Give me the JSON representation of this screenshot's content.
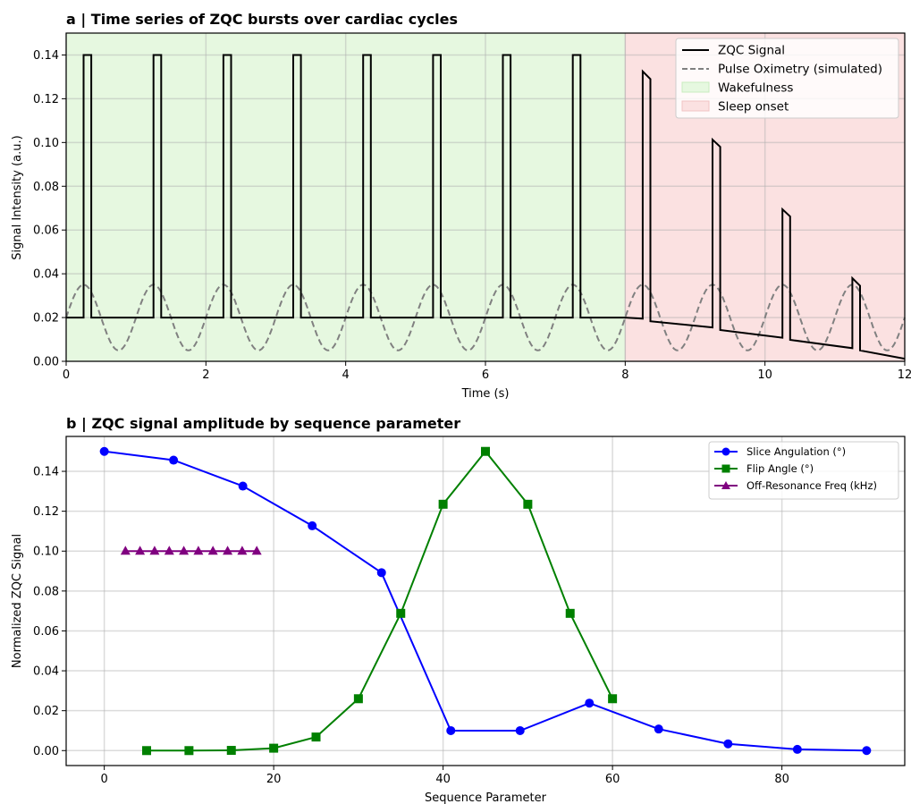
{
  "chart_data": [
    {
      "type": "line",
      "title": "a | Time series of ZQC bursts over cardiac cycles",
      "xlabel": "Time (s)",
      "ylabel": "Signal Intensity (a.u.)",
      "xlim": [
        0,
        12
      ],
      "ylim": [
        0,
        0.15
      ],
      "xticks": [
        0,
        2,
        4,
        6,
        8,
        10,
        12
      ],
      "xtick_labels": [
        "0",
        "2",
        "4",
        "6",
        "8",
        "10",
        "12"
      ],
      "yticks": [
        0,
        0.02,
        0.04,
        0.06,
        0.08,
        0.1,
        0.12,
        0.14
      ],
      "ytick_labels": [
        "0.00",
        "0.02",
        "0.04",
        "0.06",
        "0.08",
        "0.10",
        "0.12",
        "0.14"
      ],
      "grid": true,
      "legend_position": "top-right",
      "shaded_regions": [
        {
          "name": "Wakefulness",
          "x": [
            0,
            8
          ],
          "color": "#e6f8e0"
        },
        {
          "name": "Sleep onset",
          "x": [
            8,
            12
          ],
          "color": "#fbe1e1"
        }
      ],
      "series": [
        {
          "name": "ZQC Signal",
          "color": "#000000",
          "style": "solid",
          "x": [
            0,
            0.25,
            0.25,
            0.36,
            0.36,
            1.25,
            1.25,
            1.36,
            1.36,
            2.25,
            2.25,
            2.36,
            2.36,
            3.25,
            3.25,
            3.36,
            3.36,
            4.25,
            4.25,
            4.36,
            4.36,
            5.25,
            5.25,
            5.36,
            5.36,
            6.25,
            6.25,
            6.36,
            6.36,
            7.25,
            7.25,
            7.36,
            7.36,
            8.0,
            8.25,
            8.25,
            8.36,
            8.36,
            9.25,
            9.25,
            9.36,
            9.36,
            10.25,
            10.25,
            10.36,
            10.36,
            11.25,
            11.25,
            11.36,
            11.36,
            12.0
          ],
          "y": [
            0.02,
            0.02,
            0.14,
            0.14,
            0.02,
            0.02,
            0.14,
            0.14,
            0.02,
            0.02,
            0.14,
            0.14,
            0.02,
            0.02,
            0.14,
            0.14,
            0.02,
            0.02,
            0.14,
            0.14,
            0.02,
            0.02,
            0.14,
            0.14,
            0.02,
            0.02,
            0.14,
            0.14,
            0.02,
            0.02,
            0.14,
            0.14,
            0.02,
            0.02,
            0.0195,
            0.1325,
            0.129,
            0.0183,
            0.0155,
            0.1013,
            0.098,
            0.0143,
            0.0108,
            0.0695,
            0.0662,
            0.0098,
            0.006,
            0.038,
            0.0345,
            0.005,
            0.0012
          ]
        },
        {
          "name": "Pulse Oximetry (simulated)",
          "color": "#808080",
          "style": "dashed",
          "period": 1.0,
          "offset": 0.02,
          "amplitude": 0.015,
          "phase_peak": 0.25
        }
      ]
    },
    {
      "type": "line",
      "title": "b | ZQC signal amplitude by sequence parameter",
      "xlabel": "Sequence Parameter",
      "ylabel": "Normalized ZQC Signal",
      "xlim": [
        -4.5,
        94.5
      ],
      "ylim": [
        -0.0075,
        0.1575
      ],
      "xticks": [
        0,
        20,
        40,
        60,
        80
      ],
      "xtick_labels": [
        "0",
        "20",
        "40",
        "60",
        "80"
      ],
      "yticks": [
        0,
        0.02,
        0.04,
        0.06,
        0.08,
        0.1,
        0.12,
        0.14
      ],
      "ytick_labels": [
        "0.00",
        "0.02",
        "0.04",
        "0.06",
        "0.08",
        "0.10",
        "0.12",
        "0.14"
      ],
      "grid": true,
      "legend_position": "top-right",
      "series": [
        {
          "name": "Slice Angulation (°)",
          "color": "#0000ff",
          "marker": "circle",
          "x": [
            0,
            8.18,
            16.36,
            24.55,
            32.73,
            40.91,
            49.09,
            57.27,
            65.45,
            73.64,
            81.82,
            90
          ],
          "y": [
            0.15,
            0.1456,
            0.1326,
            0.1127,
            0.0892,
            0.01,
            0.01,
            0.0238,
            0.0108,
            0.0034,
            0.0006,
            0.0
          ]
        },
        {
          "name": "Flip Angle (°)",
          "color": "#008000",
          "marker": "square",
          "x": [
            5,
            10,
            15,
            20,
            25,
            30,
            35,
            40,
            45,
            50,
            55,
            60
          ],
          "y": [
            0.0,
            0.0,
            0.0001,
            0.0012,
            0.0068,
            0.026,
            0.0688,
            0.1235,
            0.15,
            0.1235,
            0.0688,
            0.026
          ]
        },
        {
          "name": "Off-Resonance Freq (kHz)",
          "color": "#800080",
          "marker": "triangle",
          "x": [
            2.5,
            4.22,
            5.94,
            7.67,
            9.39,
            11.11,
            12.83,
            14.56,
            16.28,
            18.0
          ],
          "y": [
            0.1,
            0.1,
            0.1,
            0.1,
            0.1,
            0.1,
            0.1,
            0.1,
            0.1,
            0.1
          ]
        }
      ]
    }
  ]
}
